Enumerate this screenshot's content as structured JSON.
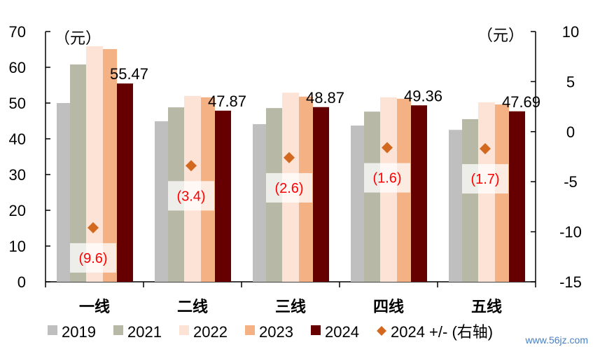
{
  "chart_data": {
    "type": "bar",
    "categories": [
      "一线",
      "二线",
      "三线",
      "四线",
      "五线"
    ],
    "left_axis": {
      "unit_label": "（元）",
      "ylim": [
        0,
        70
      ],
      "ticks": [
        0,
        10,
        20,
        30,
        40,
        50,
        60,
        70
      ]
    },
    "right_axis": {
      "unit_label": "（元）",
      "ylim": [
        -15,
        10
      ],
      "ticks": [
        -15,
        -10,
        -5,
        0,
        5,
        10
      ]
    },
    "grid": false,
    "legend_position": "bottom",
    "series": [
      {
        "name": "2019",
        "color": "#bfbfbf",
        "values": [
          50.0,
          44.9,
          44.1,
          43.7,
          42.5
        ]
      },
      {
        "name": "2021",
        "color": "#b8b8a6",
        "values": [
          60.8,
          48.8,
          48.6,
          47.6,
          45.5
        ]
      },
      {
        "name": "2022",
        "color": "#fde3d5",
        "values": [
          65.9,
          52.0,
          52.9,
          51.6,
          50.2
        ]
      },
      {
        "name": "2023",
        "color": "#f4b183",
        "values": [
          65.1,
          51.6,
          51.8,
          51.2,
          49.6
        ]
      },
      {
        "name": "2024",
        "color": "#660000",
        "values": [
          55.47,
          47.87,
          48.87,
          49.36,
          47.69
        ],
        "data_labels": [
          "55.47",
          "47.87",
          "48.87",
          "49.36",
          "47.69"
        ]
      }
    ],
    "diamond_series": {
      "name": "2024 +/- (右轴)",
      "color": "#d2691e",
      "axis": "right",
      "values": [
        -9.6,
        -3.4,
        -2.6,
        -1.6,
        -1.7
      ],
      "data_labels": [
        "(9.6)",
        "(3.4)",
        "(2.6)",
        "(1.6)",
        "(1.7)"
      ],
      "label_color": "#ff0000"
    }
  },
  "watermark": "www.56jz.com"
}
